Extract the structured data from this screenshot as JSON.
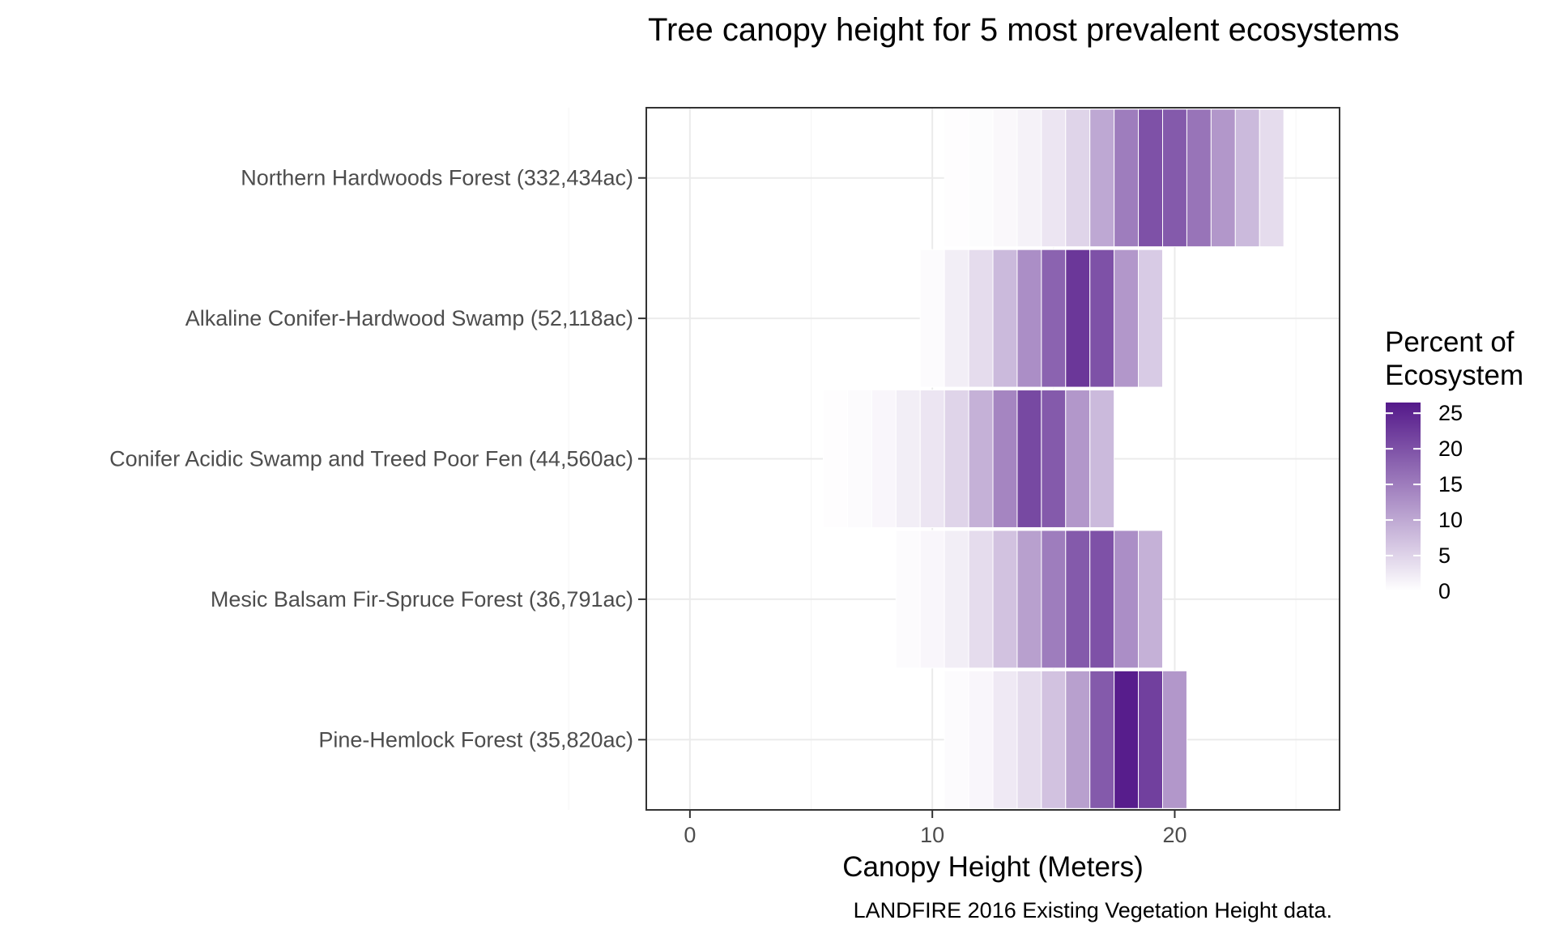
{
  "chart_data": {
    "type": "heatmap",
    "title": "Tree canopy height for 5 most prevalent ecosystems",
    "xlabel": "Canopy Height (Meters)",
    "ylabel": "",
    "caption": "LANDFIRE 2016 Existing Vegetation Height data.",
    "xlim": [
      -1.8,
      26.8
    ],
    "x_ticks": [
      0,
      10,
      20
    ],
    "grid": true,
    "legend": {
      "title_lines": [
        "Percent of",
        "Ecosystem"
      ],
      "position": "right",
      "min": 0,
      "max": 26.5,
      "ticks": [
        0,
        5,
        10,
        15,
        20,
        25
      ],
      "color_low": "#ffffff",
      "color_high": "#54198a"
    },
    "categories": [
      "Northern Hardwoods Forest (332,434ac)",
      "Alkaline Conifer-Hardwood Swamp (52,118ac)",
      "Conifer Acidic Swamp and Treed Poor Fen (44,560ac)",
      "Mesic Balsam Fir-Spruce Forest (36,791ac)",
      "Pine-Hemlock Forest (35,820ac)"
    ],
    "series": [
      {
        "name": "Northern Hardwoods Forest (332,434ac)",
        "cells": [
          [
            11,
            0.2
          ],
          [
            12,
            0.4
          ],
          [
            13,
            0.8
          ],
          [
            14,
            1.5
          ],
          [
            15,
            3
          ],
          [
            16,
            5
          ],
          [
            17,
            10
          ],
          [
            18,
            15
          ],
          [
            19,
            20
          ],
          [
            20,
            19
          ],
          [
            21,
            16
          ],
          [
            22,
            12
          ],
          [
            23,
            8
          ],
          [
            24,
            4
          ]
        ]
      },
      {
        "name": "Alkaline Conifer-Hardwood Swamp (52,118ac)",
        "cells": [
          [
            10,
            0.5
          ],
          [
            11,
            2
          ],
          [
            12,
            4
          ],
          [
            13,
            8
          ],
          [
            14,
            13
          ],
          [
            15,
            18
          ],
          [
            16,
            23
          ],
          [
            17,
            20
          ],
          [
            18,
            12
          ],
          [
            19,
            6
          ]
        ]
      },
      {
        "name": "Conifer Acidic Swamp and Treed Poor Fen (44,560ac)",
        "cells": [
          [
            6,
            0.2
          ],
          [
            7,
            0.5
          ],
          [
            8,
            1
          ],
          [
            9,
            2
          ],
          [
            10,
            3
          ],
          [
            11,
            5
          ],
          [
            12,
            9
          ],
          [
            13,
            14
          ],
          [
            14,
            21
          ],
          [
            15,
            19
          ],
          [
            16,
            12
          ],
          [
            17,
            8
          ]
        ]
      },
      {
        "name": "Mesic Balsam Fir-Spruce Forest (36,791ac)",
        "cells": [
          [
            9,
            0.5
          ],
          [
            10,
            1
          ],
          [
            11,
            2
          ],
          [
            12,
            4
          ],
          [
            13,
            7
          ],
          [
            14,
            11
          ],
          [
            15,
            15
          ],
          [
            16,
            19
          ],
          [
            17,
            20
          ],
          [
            18,
            13
          ],
          [
            19,
            9
          ]
        ]
      },
      {
        "name": "Pine-Hemlock Forest (35,820ac)",
        "cells": [
          [
            11,
            0.5
          ],
          [
            12,
            1
          ],
          [
            13,
            2.5
          ],
          [
            14,
            4
          ],
          [
            15,
            7
          ],
          [
            16,
            11
          ],
          [
            17,
            19
          ],
          [
            18,
            26
          ],
          [
            19,
            22
          ],
          [
            20,
            12
          ]
        ]
      }
    ]
  }
}
